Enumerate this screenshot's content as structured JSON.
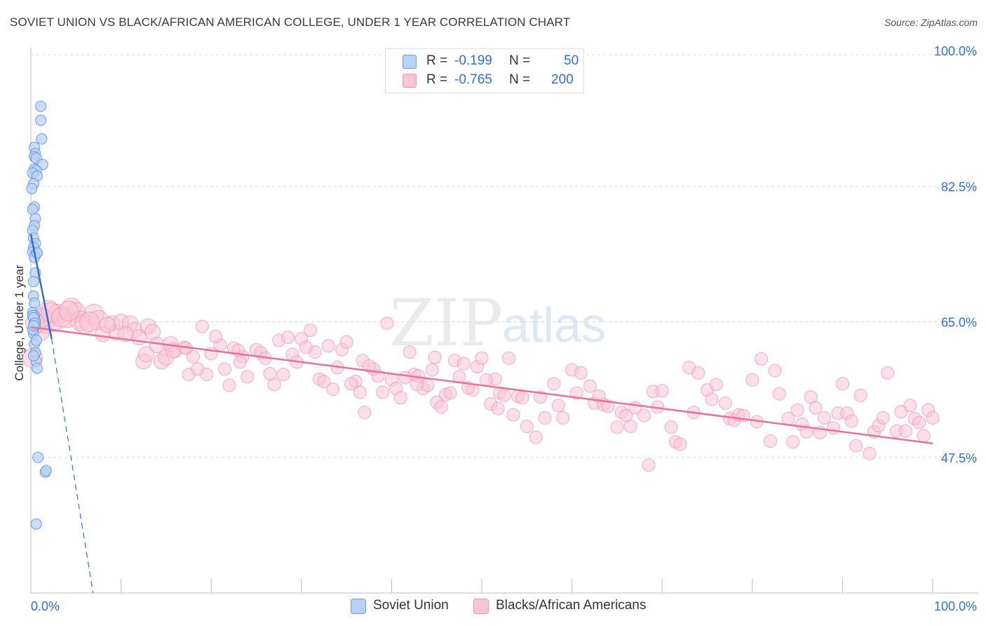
{
  "header": {
    "title": "SOVIET UNION VS BLACK/AFRICAN AMERICAN COLLEGE, UNDER 1 YEAR CORRELATION CHART",
    "source": "Source: ZipAtlas.com"
  },
  "legend": {
    "rows": [
      {
        "r_label": "R =",
        "r_value": "-0.199",
        "n_label": "N =",
        "n_value": "50"
      },
      {
        "r_label": "R =",
        "r_value": "-0.765",
        "n_label": "N =",
        "n_value": "200"
      }
    ]
  },
  "bottom_legend": {
    "items": [
      {
        "label": "Soviet Union"
      },
      {
        "label": "Blacks/African Americans"
      }
    ]
  },
  "watermark": {
    "zip": "ZIP",
    "atlas": "atlas"
  },
  "colors": {
    "blue_fill": "#b8d2f5",
    "blue_stroke": "#6d9be0",
    "blue_line": "#2f6fd6",
    "pink_fill": "#f9c4d6",
    "pink_stroke": "#ee94b3",
    "pink_line": "#e8709c",
    "tick_label": "#2f6fd6",
    "grid": "#dcdcdc"
  },
  "chart_data": {
    "type": "scatter",
    "title": "SOVIET UNION VS BLACK/AFRICAN AMERICAN COLLEGE, UNDER 1 YEAR CORRELATION CHART",
    "xlabel": "",
    "ylabel": "College, Under 1 year",
    "xlim": [
      0,
      100
    ],
    "ylim": [
      30,
      100
    ],
    "x_tick_labels": [
      "0.0%",
      "100.0%"
    ],
    "y_ticks": [
      47.5,
      65.0,
      82.5,
      100.0
    ],
    "y_tick_labels": [
      "47.5%",
      "65.0%",
      "82.5%",
      "100.0%"
    ],
    "grid": true,
    "legend_position": "top-center",
    "series": [
      {
        "name": "Soviet Union",
        "r": -0.199,
        "n": 50,
        "trend": {
          "x0": 0.0,
          "y0": 76.3,
          "x1": 2.3,
          "y1": 62.8,
          "dash_to_x": 6.9,
          "dash_to_y": 30.0
        },
        "points": [
          [
            1.1,
            92.8
          ],
          [
            1.1,
            91.0
          ],
          [
            1.2,
            88.6
          ],
          [
            0.4,
            87.5
          ],
          [
            0.5,
            86.7
          ],
          [
            0.4,
            86.3
          ],
          [
            0.6,
            86.1
          ],
          [
            1.3,
            85.3
          ],
          [
            0.4,
            84.7
          ],
          [
            0.6,
            84.5
          ],
          [
            0.2,
            84.2
          ],
          [
            0.7,
            83.8
          ],
          [
            0.3,
            82.8
          ],
          [
            0.1,
            82.2
          ],
          [
            0.4,
            79.8
          ],
          [
            0.2,
            79.5
          ],
          [
            0.5,
            78.3
          ],
          [
            0.4,
            77.4
          ],
          [
            0.2,
            76.8
          ],
          [
            0.3,
            75.8
          ],
          [
            0.5,
            75.1
          ],
          [
            0.3,
            74.6
          ],
          [
            0.2,
            74.0
          ],
          [
            0.6,
            73.8
          ],
          [
            0.4,
            73.3
          ],
          [
            0.7,
            73.9
          ],
          [
            0.5,
            71.3
          ],
          [
            0.3,
            70.2
          ],
          [
            0.3,
            68.3
          ],
          [
            0.4,
            67.4
          ],
          [
            0.2,
            66.2
          ],
          [
            0.4,
            65.8
          ],
          [
            0.5,
            65.1
          ],
          [
            0.3,
            63.5
          ],
          [
            0.4,
            62.1
          ],
          [
            0.5,
            61.0
          ],
          [
            0.6,
            59.9
          ],
          [
            0.7,
            59.0
          ],
          [
            0.2,
            65.8
          ],
          [
            0.3,
            65.5
          ],
          [
            0.5,
            64.5
          ],
          [
            0.2,
            64.0
          ],
          [
            0.4,
            64.8
          ],
          [
            0.6,
            62.6
          ],
          [
            0.3,
            60.6
          ],
          [
            0.8,
            47.5
          ],
          [
            1.6,
            45.6
          ],
          [
            1.7,
            45.8
          ],
          [
            0.6,
            38.9
          ],
          [
            0.3,
            64.5
          ]
        ]
      },
      {
        "name": "Blacks/African Americans",
        "r": -0.765,
        "n": 200,
        "trend": {
          "x0": 0.0,
          "y0": 64.3,
          "x1": 100.0,
          "y1": 49.3
        },
        "points": [
          [
            0.2,
            60.3
          ],
          [
            1.0,
            63.8
          ],
          [
            1.5,
            64.8
          ],
          [
            2.0,
            66.5
          ],
          [
            2.5,
            65.0
          ],
          [
            3.0,
            66.0
          ],
          [
            4.0,
            65.5
          ],
          [
            4.5,
            66.8
          ],
          [
            5.0,
            66.2
          ],
          [
            5.5,
            65.1
          ],
          [
            6.0,
            64.7
          ],
          [
            7.0,
            66.0
          ],
          [
            7.5,
            65.2
          ],
          [
            8.0,
            63.4
          ],
          [
            9.0,
            64.8
          ],
          [
            9.5,
            63.6
          ],
          [
            10.0,
            65.0
          ],
          [
            11.0,
            64.8
          ],
          [
            11.5,
            63.9
          ],
          [
            12.0,
            63.0
          ],
          [
            12.5,
            59.9
          ],
          [
            13.0,
            64.4
          ],
          [
            13.5,
            63.7
          ],
          [
            14.0,
            62.0
          ],
          [
            14.5,
            59.9
          ],
          [
            15.0,
            60.4
          ],
          [
            15.5,
            62.1
          ],
          [
            16.0,
            61.2
          ],
          [
            17.0,
            61.7
          ],
          [
            17.5,
            58.2
          ],
          [
            18.0,
            60.5
          ],
          [
            18.5,
            58.9
          ],
          [
            19.0,
            64.4
          ],
          [
            19.5,
            58.2
          ],
          [
            20.0,
            60.9
          ],
          [
            21.0,
            62.0
          ],
          [
            21.5,
            58.9
          ],
          [
            22.0,
            56.8
          ],
          [
            22.5,
            61.6
          ],
          [
            23.0,
            61.3
          ],
          [
            23.5,
            60.5
          ],
          [
            24.0,
            57.9
          ],
          [
            25.0,
            61.4
          ],
          [
            25.5,
            61.0
          ],
          [
            26.0,
            60.3
          ],
          [
            27.0,
            56.9
          ],
          [
            27.5,
            62.6
          ],
          [
            28.0,
            58.2
          ],
          [
            29.0,
            60.8
          ],
          [
            29.5,
            59.8
          ],
          [
            30.0,
            62.8
          ],
          [
            31.0,
            63.9
          ],
          [
            31.5,
            61.1
          ],
          [
            32.0,
            57.6
          ],
          [
            33.0,
            61.9
          ],
          [
            34.0,
            59.1
          ],
          [
            34.5,
            61.4
          ],
          [
            35.0,
            62.4
          ],
          [
            36.0,
            57.3
          ],
          [
            36.5,
            55.9
          ],
          [
            37.0,
            53.3
          ],
          [
            38.0,
            58.9
          ],
          [
            38.5,
            58.0
          ],
          [
            39.0,
            55.9
          ],
          [
            40.0,
            57.5
          ],
          [
            40.5,
            56.4
          ],
          [
            41.0,
            55.2
          ],
          [
            42.0,
            61.1
          ],
          [
            42.5,
            58.2
          ],
          [
            43.0,
            58.0
          ],
          [
            43.5,
            56.4
          ],
          [
            44.0,
            56.8
          ],
          [
            44.5,
            58.8
          ],
          [
            45.0,
            54.6
          ],
          [
            45.5,
            54.0
          ],
          [
            46.0,
            55.6
          ],
          [
            47.0,
            60.0
          ],
          [
            47.5,
            57.9
          ],
          [
            48.0,
            59.6
          ],
          [
            49.0,
            56.2
          ],
          [
            49.5,
            59.2
          ],
          [
            50.0,
            60.3
          ],
          [
            51.0,
            54.4
          ],
          [
            51.5,
            57.6
          ],
          [
            52.0,
            55.8
          ],
          [
            53.0,
            60.3
          ],
          [
            53.5,
            53.0
          ],
          [
            54.0,
            55.4
          ],
          [
            54.5,
            55.2
          ],
          [
            55.0,
            51.5
          ],
          [
            56.0,
            50.1
          ],
          [
            56.5,
            55.3
          ],
          [
            57.0,
            52.6
          ],
          [
            58.0,
            57.0
          ],
          [
            58.5,
            54.2
          ],
          [
            59.0,
            52.6
          ],
          [
            60.0,
            58.8
          ],
          [
            60.5,
            55.8
          ],
          [
            61.0,
            58.4
          ],
          [
            62.0,
            56.7
          ],
          [
            62.5,
            54.5
          ],
          [
            63.0,
            55.4
          ],
          [
            63.5,
            54.3
          ],
          [
            64.0,
            54.1
          ],
          [
            65.0,
            51.4
          ],
          [
            65.5,
            53.3
          ],
          [
            66.0,
            52.9
          ],
          [
            66.5,
            51.5
          ],
          [
            67.0,
            53.9
          ],
          [
            68.0,
            52.9
          ],
          [
            68.5,
            46.5
          ],
          [
            69.0,
            56.0
          ],
          [
            69.5,
            54.0
          ],
          [
            70.0,
            56.1
          ],
          [
            71.0,
            51.4
          ],
          [
            71.5,
            49.5
          ],
          [
            72.0,
            49.2
          ],
          [
            73.0,
            59.1
          ],
          [
            73.5,
            53.3
          ],
          [
            74.0,
            58.4
          ],
          [
            75.0,
            56.2
          ],
          [
            75.5,
            55.0
          ],
          [
            76.0,
            56.9
          ],
          [
            77.0,
            54.5
          ],
          [
            77.5,
            52.5
          ],
          [
            78.0,
            52.3
          ],
          [
            78.5,
            53.0
          ],
          [
            79.0,
            52.9
          ],
          [
            80.0,
            57.5
          ],
          [
            80.5,
            52.1
          ],
          [
            81.0,
            60.2
          ],
          [
            82.0,
            49.6
          ],
          [
            82.5,
            58.7
          ],
          [
            83.0,
            55.7
          ],
          [
            84.0,
            52.5
          ],
          [
            84.5,
            49.5
          ],
          [
            85.0,
            53.6
          ],
          [
            85.5,
            51.8
          ],
          [
            86.0,
            50.8
          ],
          [
            86.5,
            55.3
          ],
          [
            87.0,
            53.9
          ],
          [
            87.5,
            50.7
          ],
          [
            88.0,
            52.6
          ],
          [
            89.0,
            51.3
          ],
          [
            89.5,
            53.2
          ],
          [
            90.0,
            57.0
          ],
          [
            90.5,
            53.2
          ],
          [
            91.0,
            52.2
          ],
          [
            91.5,
            49.0
          ],
          [
            92.0,
            55.5
          ],
          [
            93.0,
            48.0
          ],
          [
            93.5,
            50.8
          ],
          [
            94.0,
            51.6
          ],
          [
            94.5,
            52.6
          ],
          [
            95.0,
            58.4
          ],
          [
            96.0,
            50.9
          ],
          [
            96.5,
            53.4
          ],
          [
            97.0,
            50.9
          ],
          [
            97.5,
            54.2
          ],
          [
            98.0,
            52.5
          ],
          [
            98.5,
            52.0
          ],
          [
            99.0,
            50.3
          ],
          [
            99.5,
            53.6
          ],
          [
            100.0,
            52.6
          ],
          [
            0.5,
            64.8
          ],
          [
            1.2,
            65.5
          ],
          [
            2.2,
            66.2
          ],
          [
            3.4,
            65.6
          ],
          [
            4.2,
            66.4
          ],
          [
            6.5,
            65.0
          ],
          [
            8.5,
            64.6
          ],
          [
            10.5,
            63.4
          ],
          [
            12.8,
            60.8
          ],
          [
            15.8,
            61.3
          ],
          [
            17.2,
            61.6
          ],
          [
            20.5,
            63.1
          ],
          [
            23.2,
            59.8
          ],
          [
            26.5,
            58.3
          ],
          [
            28.5,
            63.0
          ],
          [
            30.5,
            61.7
          ],
          [
            32.5,
            57.3
          ],
          [
            33.5,
            56.3
          ],
          [
            35.5,
            57.0
          ],
          [
            36.8,
            60.0
          ],
          [
            37.5,
            59.3
          ],
          [
            39.5,
            64.8
          ],
          [
            41.5,
            57.8
          ],
          [
            42.8,
            56.9
          ],
          [
            44.8,
            60.4
          ],
          [
            46.5,
            55.8
          ],
          [
            48.5,
            56.5
          ],
          [
            50.5,
            57.5
          ],
          [
            51.8,
            53.8
          ],
          [
            52.5,
            55.5
          ]
        ]
      }
    ]
  }
}
